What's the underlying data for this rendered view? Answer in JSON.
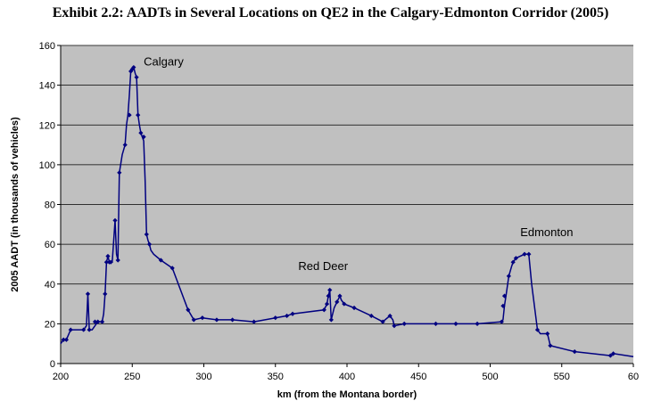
{
  "chart_data": {
    "type": "line",
    "title": "Exhibit 2.2: AADTs in Several Locations on QE2 in the Calgary-Edmonton Corridor (2005)",
    "xlabel": "km (from the Montana border)",
    "ylabel": "2005 AADT (in thousands of vehicles)",
    "xlim": [
      200,
      600
    ],
    "ylim": [
      0,
      160
    ],
    "x_ticks": [
      "200",
      "250",
      "300",
      "350",
      "400",
      "450",
      "500",
      "550",
      "60"
    ],
    "y_ticks": [
      "0",
      "20",
      "40",
      "60",
      "80",
      "100",
      "120",
      "140",
      "160"
    ],
    "grid": true,
    "legend": "none",
    "plot_background": "#c0c0c0",
    "line_color": "#000080",
    "series": [
      {
        "x": [
          200,
          202,
          204,
          207,
          216,
          218,
          219,
          220,
          222,
          224,
          226,
          228,
          229,
          230,
          231,
          232,
          233,
          234,
          235,
          236,
          238,
          239,
          240,
          241,
          243,
          245,
          246,
          247,
          248,
          249,
          250,
          251,
          252,
          253,
          254,
          255,
          256,
          257,
          258,
          259,
          260,
          261,
          262,
          263,
          265,
          270,
          278,
          289,
          293,
          299,
          309,
          320,
          335,
          350,
          358,
          362,
          384,
          386,
          387,
          388,
          389,
          391,
          393,
          395,
          396,
          398,
          405,
          417,
          425,
          430,
          432,
          433,
          440,
          462,
          476,
          491,
          508,
          509,
          510,
          511,
          513,
          515,
          516,
          518,
          524,
          527,
          529,
          533,
          535,
          540,
          542,
          559,
          584,
          586,
          600
        ],
        "y": [
          10,
          12,
          12,
          17,
          17,
          19,
          35,
          17,
          17,
          19,
          21,
          21,
          21,
          25,
          35,
          51,
          54,
          51,
          51,
          51,
          72,
          55,
          52,
          96,
          105,
          110,
          120,
          125,
          135,
          147,
          148,
          149,
          146,
          144,
          125,
          120,
          116,
          114,
          112,
          92,
          65,
          62,
          60,
          57,
          55,
          52,
          48,
          27,
          22,
          23,
          22,
          22,
          21,
          23,
          24,
          25,
          27,
          30,
          34,
          37,
          22,
          28,
          31,
          34,
          32,
          30,
          28,
          24,
          21,
          24,
          22,
          19,
          20,
          20,
          20,
          20,
          21,
          22,
          29,
          34,
          44,
          49,
          51,
          53,
          55,
          55,
          40,
          17,
          15,
          15,
          9,
          6,
          4,
          5,
          3.5
        ]
      }
    ],
    "markers": {
      "x": [
        202,
        204,
        207,
        216,
        219,
        220,
        224,
        226,
        229,
        231,
        232,
        233,
        234,
        235,
        238,
        240,
        241,
        245,
        248,
        249,
        250,
        251,
        253,
        254,
        256,
        258,
        260,
        262,
        270,
        278,
        289,
        293,
        299,
        309,
        320,
        335,
        350,
        358,
        362,
        384,
        386,
        387,
        388,
        389,
        393,
        395,
        398,
        405,
        417,
        425,
        430,
        433,
        440,
        462,
        476,
        491,
        508,
        509,
        510,
        513,
        516,
        518,
        524,
        527,
        533,
        540,
        542,
        559,
        584,
        586
      ],
      "y": [
        12,
        12,
        17,
        17,
        35,
        17,
        21,
        21,
        21,
        35,
        51,
        54,
        51,
        51,
        72,
        52,
        96,
        110,
        125,
        147,
        148,
        149,
        144,
        125,
        116,
        114,
        65,
        60,
        52,
        48,
        27,
        22,
        23,
        22,
        22,
        21,
        23,
        24,
        25,
        27,
        30,
        34,
        37,
        22,
        31,
        34,
        30,
        28,
        24,
        21,
        24,
        19,
        20,
        20,
        20,
        20,
        21,
        29,
        34,
        44,
        51,
        53,
        55,
        55,
        17,
        15,
        9,
        6,
        4,
        5
      ]
    },
    "annotations": [
      {
        "text": "Calgary",
        "x": 258,
        "y": 150
      },
      {
        "text": "Red Deer",
        "x": 366,
        "y": 47
      },
      {
        "text": "Edmonton",
        "x": 521,
        "y": 64
      }
    ]
  }
}
